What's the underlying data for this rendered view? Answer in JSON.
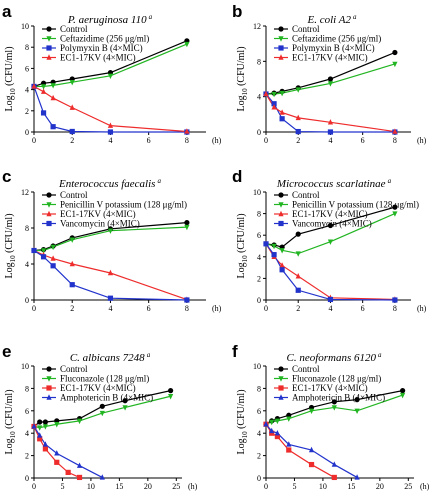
{
  "chart_data": [
    {
      "type": "line",
      "panel_label": "a",
      "title": "P. aeruginosa 110",
      "title_mark": "a",
      "ylabel_main": "Log",
      "ylabel_sub": "10",
      "ylabel_rest": " (CFU/ml)",
      "xunit": "(h)",
      "xticks": [
        0,
        2,
        4,
        6,
        8
      ],
      "yticks": [
        0,
        2,
        4,
        6,
        8,
        10
      ],
      "xlim": [
        0,
        9
      ],
      "ylim": [
        0,
        10
      ],
      "grid": false,
      "legend_position": "top-left",
      "series": [
        {
          "name": "Control",
          "color": "#000000",
          "marker": "circle",
          "x": [
            0,
            0.5,
            1,
            2,
            4,
            8
          ],
          "y": [
            4.3,
            4.6,
            4.7,
            5.0,
            5.6,
            8.6
          ]
        },
        {
          "name": "Ceftazidime (256 μg/ml)",
          "color": "#22b522",
          "marker": "triangle-down",
          "x": [
            0,
            0.5,
            1,
            2,
            4,
            8
          ],
          "y": [
            4.3,
            4.3,
            4.4,
            4.7,
            5.3,
            8.3
          ]
        },
        {
          "name": "Polymyxin B (4×MIC)",
          "color": "#2233cc",
          "marker": "square",
          "x": [
            0,
            0.5,
            1,
            2,
            4,
            8
          ],
          "y": [
            4.3,
            1.8,
            0.5,
            0.05,
            0,
            0
          ]
        },
        {
          "name": "EC1-17KV (4×MIC)",
          "color": "#ee2c2c",
          "marker": "triangle-up",
          "x": [
            0,
            0.5,
            1,
            2,
            4,
            8
          ],
          "y": [
            4.3,
            3.8,
            3.2,
            2.3,
            0.6,
            0.05
          ]
        }
      ]
    },
    {
      "type": "line",
      "panel_label": "b",
      "title": "E. coli A2",
      "title_mark": "a",
      "ylabel_main": "Log",
      "ylabel_sub": "10",
      "ylabel_rest": " (CFU/ml)",
      "xunit": "(h)",
      "xticks": [
        0,
        2,
        4,
        6,
        8
      ],
      "yticks": [
        0,
        4,
        8,
        12
      ],
      "xlim": [
        0,
        9
      ],
      "ylim": [
        0,
        12
      ],
      "grid": false,
      "legend_position": "top-left",
      "series": [
        {
          "name": "Control",
          "color": "#000000",
          "marker": "circle",
          "x": [
            0,
            0.5,
            1,
            2,
            4,
            8
          ],
          "y": [
            4.3,
            4.4,
            4.6,
            5.0,
            6.0,
            9.0
          ]
        },
        {
          "name": "Ceftazidime (256 μg/ml)",
          "color": "#22b522",
          "marker": "triangle-down",
          "x": [
            0,
            0.5,
            1,
            2,
            4,
            8
          ],
          "y": [
            4.3,
            4.3,
            4.4,
            4.8,
            5.5,
            7.7
          ]
        },
        {
          "name": "Polymyxin B (4×MIC)",
          "color": "#2233cc",
          "marker": "square",
          "x": [
            0,
            0.5,
            1,
            2,
            4,
            8
          ],
          "y": [
            4.3,
            3.2,
            1.5,
            0.05,
            0,
            0
          ]
        },
        {
          "name": "EC1-17KV (4×MIC)",
          "color": "#ee2c2c",
          "marker": "triangle-up",
          "x": [
            0,
            0.5,
            1,
            2,
            4,
            8
          ],
          "y": [
            4.3,
            2.8,
            2.2,
            1.6,
            1.1,
            0.05
          ]
        }
      ]
    },
    {
      "type": "line",
      "panel_label": "c",
      "title": "Enterococcus faecalis",
      "title_mark": "a",
      "ylabel_main": "Log",
      "ylabel_sub": "10",
      "ylabel_rest": " (CFU/ml)",
      "xunit": "(h)",
      "xticks": [
        0,
        2,
        4,
        6,
        8
      ],
      "yticks": [
        0,
        4,
        8,
        12
      ],
      "xlim": [
        0,
        9
      ],
      "ylim": [
        0,
        12
      ],
      "grid": false,
      "legend_position": "top-left",
      "series": [
        {
          "name": "Control",
          "color": "#000000",
          "marker": "circle",
          "x": [
            0,
            0.5,
            1,
            2,
            4,
            8
          ],
          "y": [
            5.5,
            5.6,
            6.0,
            6.9,
            7.9,
            8.6
          ]
        },
        {
          "name": "Penicillin V potassium (128 μg/ml)",
          "color": "#22b522",
          "marker": "triangle-down",
          "x": [
            0,
            0.5,
            1,
            2,
            4,
            8
          ],
          "y": [
            5.5,
            5.5,
            5.9,
            6.7,
            7.7,
            8.1
          ]
        },
        {
          "name": "EC1-17KV (4×MIC)",
          "color": "#ee2c2c",
          "marker": "triangle-up",
          "x": [
            0,
            0.5,
            1,
            2,
            4,
            8
          ],
          "y": [
            5.5,
            5.0,
            4.6,
            4.0,
            3.0,
            0.05
          ]
        },
        {
          "name": "Vancomycin (4×MIC)",
          "color": "#2233cc",
          "marker": "square",
          "x": [
            0,
            0.5,
            1,
            2,
            4,
            8
          ],
          "y": [
            5.5,
            4.8,
            3.8,
            1.7,
            0.2,
            0
          ]
        }
      ]
    },
    {
      "type": "line",
      "panel_label": "d",
      "title": "Micrococcus scarlatinae",
      "title_mark": "a",
      "ylabel_main": "Log",
      "ylabel_sub": "10",
      "ylabel_rest": " (CFU/ml)",
      "xunit": "(h)",
      "xticks": [
        0,
        2,
        4,
        6,
        8
      ],
      "yticks": [
        0,
        2,
        4,
        6,
        8,
        10
      ],
      "xlim": [
        0,
        9
      ],
      "ylim": [
        0,
        10
      ],
      "grid": false,
      "legend_position": "top-left",
      "series": [
        {
          "name": "Control",
          "color": "#000000",
          "marker": "circle",
          "x": [
            0,
            0.5,
            1,
            2,
            4,
            8
          ],
          "y": [
            5.2,
            5.1,
            4.9,
            6.1,
            6.9,
            8.6
          ]
        },
        {
          "name": "Penicillin V potassium (128 μg/ml)",
          "color": "#22b522",
          "marker": "triangle-down",
          "x": [
            0,
            0.5,
            1,
            2,
            4,
            8
          ],
          "y": [
            5.2,
            5.0,
            4.6,
            4.3,
            5.4,
            8.0
          ]
        },
        {
          "name": "EC1-17KV (4×MIC)",
          "color": "#ee2c2c",
          "marker": "triangle-up",
          "x": [
            0,
            0.5,
            1,
            2,
            4,
            8
          ],
          "y": [
            5.2,
            4.0,
            3.2,
            2.2,
            0.2,
            0.05
          ]
        },
        {
          "name": "Vancomycin (4×MIC)",
          "color": "#2233cc",
          "marker": "square",
          "x": [
            0,
            0.5,
            1,
            2,
            4,
            8
          ],
          "y": [
            5.2,
            4.2,
            2.8,
            0.9,
            0.05,
            0
          ]
        }
      ]
    },
    {
      "type": "line",
      "panel_label": "e",
      "title": "C. albicans 7248",
      "title_mark": "a",
      "ylabel_main": "Log",
      "ylabel_sub": "10",
      "ylabel_rest": " (CFU/ml)",
      "xunit": "(h)",
      "xticks": [
        0,
        5,
        10,
        15,
        20,
        25
      ],
      "yticks": [
        0,
        2,
        4,
        6,
        8,
        10
      ],
      "xlim": [
        0,
        26
      ],
      "ylim": [
        0,
        10
      ],
      "grid": false,
      "legend_position": "top-left",
      "series": [
        {
          "name": "Control",
          "color": "#000000",
          "marker": "circle",
          "x": [
            0,
            1,
            2,
            4,
            8,
            12,
            16,
            24
          ],
          "y": [
            4.6,
            5.0,
            5.0,
            5.1,
            5.3,
            6.4,
            6.9,
            7.8
          ]
        },
        {
          "name": "Fluconazole (128 μg/ml)",
          "color": "#22b522",
          "marker": "triangle-down",
          "x": [
            0,
            1,
            2,
            4,
            8,
            12,
            16,
            24
          ],
          "y": [
            4.6,
            4.5,
            4.6,
            4.8,
            5.1,
            5.8,
            6.3,
            7.3
          ]
        },
        {
          "name": "EC1-17KV (4×MIC)",
          "color": "#ee2c2c",
          "marker": "square",
          "x": [
            0,
            1,
            2,
            4,
            6,
            8
          ],
          "y": [
            4.6,
            3.5,
            2.6,
            1.4,
            0.5,
            0.05
          ]
        },
        {
          "name": "Amphotericin B (4×MIC)",
          "color": "#2233cc",
          "marker": "triangle-up",
          "x": [
            0,
            1,
            2,
            4,
            8,
            12
          ],
          "y": [
            4.6,
            3.8,
            3.0,
            2.2,
            1.1,
            0.05
          ]
        }
      ]
    },
    {
      "type": "line",
      "panel_label": "f",
      "title": "C. neoformans 6120",
      "title_mark": "a",
      "ylabel_main": "Log",
      "ylabel_sub": "10",
      "ylabel_rest": " (CFU/ml)",
      "xunit": "(h)",
      "xticks": [
        0,
        5,
        10,
        15,
        20,
        25
      ],
      "yticks": [
        0,
        2,
        4,
        6,
        8,
        10
      ],
      "xlim": [
        0,
        26
      ],
      "ylim": [
        0,
        10
      ],
      "grid": false,
      "legend_position": "top-left",
      "series": [
        {
          "name": "Control",
          "color": "#000000",
          "marker": "circle",
          "x": [
            0,
            1,
            2,
            4,
            8,
            12,
            16,
            24
          ],
          "y": [
            4.8,
            5.1,
            5.3,
            5.6,
            6.3,
            6.8,
            7.0,
            7.8
          ]
        },
        {
          "name": "Fluconazole (128 μg/ml)",
          "color": "#22b522",
          "marker": "triangle-down",
          "x": [
            0,
            1,
            2,
            4,
            8,
            12,
            16,
            24
          ],
          "y": [
            4.8,
            5.0,
            5.1,
            5.3,
            6.0,
            6.3,
            6.0,
            7.4
          ]
        },
        {
          "name": "EC1-17KV (4×MIC)",
          "color": "#ee2c2c",
          "marker": "square",
          "x": [
            0,
            1,
            2,
            4,
            8,
            12
          ],
          "y": [
            4.8,
            4.0,
            3.7,
            2.5,
            1.2,
            0.05
          ]
        },
        {
          "name": "Amphotericin B (4×MIC)",
          "color": "#2233cc",
          "marker": "triangle-up",
          "x": [
            0,
            1,
            2,
            4,
            8,
            12,
            16
          ],
          "y": [
            4.8,
            4.2,
            4.0,
            3.0,
            2.5,
            1.2,
            0.05
          ]
        }
      ]
    }
  ]
}
